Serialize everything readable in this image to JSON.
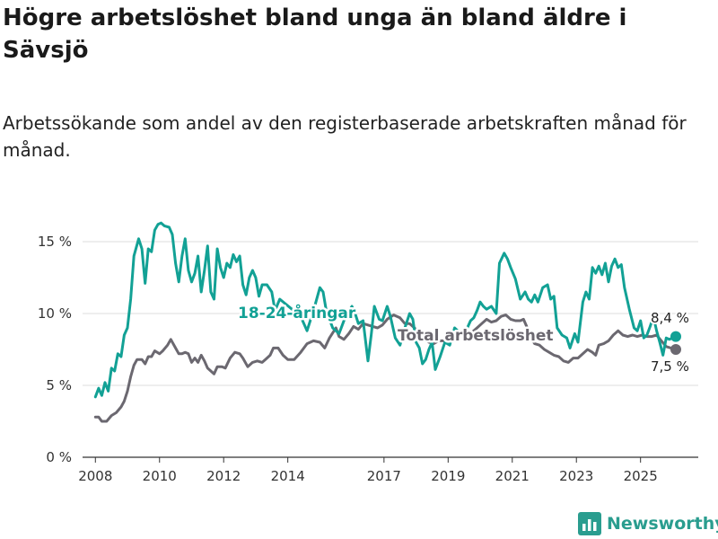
{
  "title": "Högre arbetslöshet bland unga än bland äldre i Sävsjö",
  "subtitle": "Arbetssökande som andel av den registerbaserade arbetskraften månad för månad.",
  "brand": {
    "name": "Newsworthy",
    "icon": "bar-chart-logo-icon",
    "color": "#2a9d8f"
  },
  "chart_data": {
    "type": "line",
    "title": "Högre arbetslöshet bland unga än bland äldre i Sävsjö",
    "xlabel": "",
    "ylabel": "",
    "xlim": [
      2007.6,
      2026.8
    ],
    "ylim": [
      0,
      16.5
    ],
    "y_ticks": [
      0,
      5,
      10,
      15
    ],
    "y_tick_labels": [
      "0 %",
      "5 %",
      "10 %",
      "15 %"
    ],
    "x_ticks": [
      2008,
      2010,
      2012,
      2014,
      2017,
      2019,
      2021,
      2023,
      2025
    ],
    "x_tick_labels": [
      "2008",
      "2010",
      "2012",
      "2014",
      "2017",
      "2019",
      "2021",
      "2023",
      "2025"
    ],
    "grid": true,
    "series": [
      {
        "name": "18-24-åringar",
        "label": "18-24-åringar",
        "color": "#12a195",
        "end_label": "8,4 %",
        "points": [
          [
            2008.0,
            4.2
          ],
          [
            2008.1,
            4.8
          ],
          [
            2008.2,
            4.3
          ],
          [
            2008.3,
            5.2
          ],
          [
            2008.4,
            4.6
          ],
          [
            2008.5,
            6.2
          ],
          [
            2008.6,
            6.0
          ],
          [
            2008.7,
            7.2
          ],
          [
            2008.8,
            7.0
          ],
          [
            2008.9,
            8.5
          ],
          [
            2009.0,
            9.0
          ],
          [
            2009.1,
            11.0
          ],
          [
            2009.2,
            14.0
          ],
          [
            2009.35,
            15.2
          ],
          [
            2009.45,
            14.5
          ],
          [
            2009.55,
            12.1
          ],
          [
            2009.65,
            14.5
          ],
          [
            2009.75,
            14.3
          ],
          [
            2009.85,
            15.8
          ],
          [
            2009.95,
            16.2
          ],
          [
            2010.05,
            16.3
          ],
          [
            2010.15,
            16.1
          ],
          [
            2010.3,
            16.0
          ],
          [
            2010.4,
            15.5
          ],
          [
            2010.5,
            13.5
          ],
          [
            2010.6,
            12.2
          ],
          [
            2010.7,
            14.0
          ],
          [
            2010.8,
            15.2
          ],
          [
            2010.9,
            13.0
          ],
          [
            2011.0,
            12.2
          ],
          [
            2011.1,
            12.8
          ],
          [
            2011.2,
            14.0
          ],
          [
            2011.3,
            11.5
          ],
          [
            2011.4,
            13.0
          ],
          [
            2011.5,
            14.7
          ],
          [
            2011.6,
            11.5
          ],
          [
            2011.7,
            11.0
          ],
          [
            2011.8,
            14.5
          ],
          [
            2011.9,
            13.2
          ],
          [
            2012.0,
            12.5
          ],
          [
            2012.1,
            13.5
          ],
          [
            2012.2,
            13.2
          ],
          [
            2012.3,
            14.1
          ],
          [
            2012.4,
            13.6
          ],
          [
            2012.5,
            14.0
          ],
          [
            2012.6,
            12.0
          ],
          [
            2012.7,
            11.3
          ],
          [
            2012.8,
            12.5
          ],
          [
            2012.9,
            13.0
          ],
          [
            2013.0,
            12.5
          ],
          [
            2013.1,
            11.2
          ],
          [
            2013.2,
            12.0
          ],
          [
            2013.35,
            12.0
          ],
          [
            2013.5,
            11.5
          ],
          [
            2013.6,
            10.2
          ],
          [
            2013.75,
            11.0
          ],
          [
            2014.4,
            9.8
          ],
          [
            2014.6,
            8.8
          ],
          [
            2014.8,
            10.2
          ],
          [
            2015.0,
            11.8
          ],
          [
            2015.1,
            11.5
          ],
          [
            2015.2,
            10.2
          ],
          [
            2015.4,
            9.0
          ],
          [
            2015.6,
            8.6
          ],
          [
            2015.8,
            9.8
          ],
          [
            2016.0,
            10.5
          ],
          [
            2016.1,
            10.0
          ],
          [
            2016.2,
            9.3
          ],
          [
            2016.35,
            9.5
          ],
          [
            2016.5,
            6.7
          ],
          [
            2016.6,
            8.5
          ],
          [
            2016.7,
            10.5
          ],
          [
            2016.85,
            9.6
          ],
          [
            2016.95,
            9.5
          ],
          [
            2017.1,
            10.5
          ],
          [
            2017.2,
            9.8
          ],
          [
            2017.35,
            8.3
          ],
          [
            2017.5,
            7.8
          ],
          [
            2017.65,
            9.0
          ],
          [
            2017.8,
            10.0
          ],
          [
            2017.9,
            9.6
          ],
          [
            2018.0,
            8.0
          ],
          [
            2018.1,
            7.6
          ],
          [
            2018.2,
            6.5
          ],
          [
            2018.3,
            6.8
          ],
          [
            2018.4,
            7.5
          ],
          [
            2018.5,
            8.0
          ],
          [
            2018.6,
            6.1
          ],
          [
            2018.75,
            7.0
          ],
          [
            2018.9,
            8.0
          ],
          [
            2019.05,
            7.8
          ],
          [
            2019.2,
            9.0
          ],
          [
            2019.35,
            8.7
          ],
          [
            2019.5,
            8.5
          ],
          [
            2019.6,
            9.0
          ],
          [
            2019.7,
            9.5
          ],
          [
            2019.8,
            9.7
          ],
          [
            2019.9,
            10.2
          ],
          [
            2020.0,
            10.8
          ],
          [
            2020.1,
            10.5
          ],
          [
            2020.2,
            10.3
          ],
          [
            2020.35,
            10.5
          ],
          [
            2020.5,
            10.0
          ],
          [
            2020.6,
            13.5
          ],
          [
            2020.75,
            14.2
          ],
          [
            2020.85,
            13.8
          ],
          [
            2020.95,
            13.2
          ],
          [
            2021.1,
            12.4
          ],
          [
            2021.25,
            11.0
          ],
          [
            2021.4,
            11.5
          ],
          [
            2021.5,
            11.0
          ],
          [
            2021.6,
            10.8
          ],
          [
            2021.7,
            11.3
          ],
          [
            2021.8,
            10.8
          ],
          [
            2021.95,
            11.8
          ],
          [
            2022.1,
            12.0
          ],
          [
            2022.2,
            11.0
          ],
          [
            2022.3,
            11.2
          ],
          [
            2022.4,
            9.0
          ],
          [
            2022.55,
            8.5
          ],
          [
            2022.7,
            8.3
          ],
          [
            2022.8,
            7.6
          ],
          [
            2022.95,
            8.6
          ],
          [
            2023.05,
            8.0
          ],
          [
            2023.2,
            10.8
          ],
          [
            2023.3,
            11.5
          ],
          [
            2023.4,
            11.0
          ],
          [
            2023.5,
            13.2
          ],
          [
            2023.6,
            12.8
          ],
          [
            2023.7,
            13.3
          ],
          [
            2023.8,
            12.7
          ],
          [
            2023.9,
            13.5
          ],
          [
            2024.0,
            12.2
          ],
          [
            2024.1,
            13.3
          ],
          [
            2024.2,
            13.8
          ],
          [
            2024.3,
            13.2
          ],
          [
            2024.4,
            13.4
          ],
          [
            2024.5,
            11.8
          ],
          [
            2024.65,
            10.3
          ],
          [
            2024.8,
            9.0
          ],
          [
            2024.9,
            8.8
          ],
          [
            2025.0,
            9.5
          ],
          [
            2025.1,
            8.3
          ],
          [
            2025.2,
            8.5
          ],
          [
            2025.3,
            9.1
          ],
          [
            2025.4,
            9.8
          ],
          [
            2025.5,
            8.8
          ],
          [
            2025.6,
            8.0
          ],
          [
            2025.7,
            7.1
          ],
          [
            2025.8,
            8.3
          ],
          [
            2025.9,
            8.2
          ],
          [
            2026.0,
            8.3
          ],
          [
            2026.1,
            8.4
          ]
        ]
      },
      {
        "name": "Total arbetslöshet",
        "label": "Total arbetslöshet",
        "color": "#6b6870",
        "end_label": "7,5 %",
        "points": [
          [
            2008.0,
            2.8
          ],
          [
            2008.1,
            2.8
          ],
          [
            2008.2,
            2.5
          ],
          [
            2008.35,
            2.5
          ],
          [
            2008.5,
            2.9
          ],
          [
            2008.65,
            3.1
          ],
          [
            2008.8,
            3.5
          ],
          [
            2008.9,
            3.9
          ],
          [
            2009.0,
            4.6
          ],
          [
            2009.1,
            5.6
          ],
          [
            2009.2,
            6.4
          ],
          [
            2009.3,
            6.8
          ],
          [
            2009.45,
            6.8
          ],
          [
            2009.55,
            6.5
          ],
          [
            2009.65,
            7.0
          ],
          [
            2009.75,
            7.0
          ],
          [
            2009.85,
            7.4
          ],
          [
            2010.0,
            7.2
          ],
          [
            2010.1,
            7.4
          ],
          [
            2010.25,
            7.8
          ],
          [
            2010.35,
            8.2
          ],
          [
            2010.5,
            7.6
          ],
          [
            2010.6,
            7.2
          ],
          [
            2010.7,
            7.2
          ],
          [
            2010.8,
            7.3
          ],
          [
            2010.9,
            7.2
          ],
          [
            2011.0,
            6.6
          ],
          [
            2011.1,
            6.9
          ],
          [
            2011.2,
            6.6
          ],
          [
            2011.3,
            7.1
          ],
          [
            2011.4,
            6.7
          ],
          [
            2011.5,
            6.2
          ],
          [
            2011.6,
            6.0
          ],
          [
            2011.7,
            5.8
          ],
          [
            2011.8,
            6.3
          ],
          [
            2011.95,
            6.3
          ],
          [
            2012.05,
            6.2
          ],
          [
            2012.2,
            6.9
          ],
          [
            2012.35,
            7.3
          ],
          [
            2012.5,
            7.2
          ],
          [
            2012.6,
            6.9
          ],
          [
            2012.75,
            6.3
          ],
          [
            2012.9,
            6.6
          ],
          [
            2013.05,
            6.7
          ],
          [
            2013.2,
            6.6
          ],
          [
            2013.3,
            6.8
          ],
          [
            2013.45,
            7.1
          ],
          [
            2013.55,
            7.6
          ],
          [
            2013.7,
            7.6
          ],
          [
            2013.85,
            7.1
          ],
          [
            2014.0,
            6.8
          ],
          [
            2014.2,
            6.8
          ],
          [
            2014.4,
            7.3
          ],
          [
            2014.6,
            7.9
          ],
          [
            2014.8,
            8.1
          ],
          [
            2015.0,
            8.0
          ],
          [
            2015.15,
            7.6
          ],
          [
            2015.3,
            8.3
          ],
          [
            2015.5,
            9.0
          ],
          [
            2015.6,
            8.4
          ],
          [
            2015.75,
            8.2
          ],
          [
            2015.9,
            8.6
          ],
          [
            2016.05,
            9.1
          ],
          [
            2016.2,
            8.9
          ],
          [
            2016.35,
            9.3
          ],
          [
            2016.5,
            9.2
          ],
          [
            2016.65,
            9.1
          ],
          [
            2016.8,
            9.0
          ],
          [
            2016.95,
            9.2
          ],
          [
            2017.1,
            9.6
          ],
          [
            2017.3,
            9.9
          ],
          [
            2017.5,
            9.7
          ],
          [
            2017.65,
            9.3
          ],
          [
            2017.8,
            9.3
          ],
          [
            2017.95,
            9.0
          ],
          [
            2018.1,
            8.6
          ],
          [
            2018.25,
            8.2
          ],
          [
            2018.4,
            8.0
          ],
          [
            2018.55,
            7.9
          ],
          [
            2018.7,
            8.1
          ],
          [
            2018.85,
            8.1
          ],
          [
            2019.0,
            8.2
          ],
          [
            2019.15,
            8.4
          ],
          [
            2019.3,
            8.6
          ],
          [
            2019.45,
            8.8
          ],
          [
            2019.6,
            8.6
          ],
          [
            2019.75,
            8.7
          ],
          [
            2019.9,
            9.0
          ],
          [
            2020.05,
            9.3
          ],
          [
            2020.2,
            9.6
          ],
          [
            2020.35,
            9.4
          ],
          [
            2020.5,
            9.5
          ],
          [
            2020.65,
            9.8
          ],
          [
            2020.8,
            9.9
          ],
          [
            2020.95,
            9.6
          ],
          [
            2021.1,
            9.5
          ],
          [
            2021.25,
            9.5
          ],
          [
            2021.35,
            9.6
          ],
          [
            2021.45,
            9.1
          ],
          [
            2021.55,
            8.4
          ],
          [
            2021.7,
            7.9
          ],
          [
            2021.85,
            7.8
          ],
          [
            2022.0,
            7.5
          ],
          [
            2022.15,
            7.3
          ],
          [
            2022.3,
            7.1
          ],
          [
            2022.45,
            7.0
          ],
          [
            2022.6,
            6.7
          ],
          [
            2022.75,
            6.6
          ],
          [
            2022.9,
            6.9
          ],
          [
            2023.05,
            6.9
          ],
          [
            2023.2,
            7.2
          ],
          [
            2023.35,
            7.5
          ],
          [
            2023.5,
            7.3
          ],
          [
            2023.6,
            7.1
          ],
          [
            2023.7,
            7.8
          ],
          [
            2023.85,
            7.9
          ],
          [
            2024.0,
            8.1
          ],
          [
            2024.15,
            8.5
          ],
          [
            2024.3,
            8.8
          ],
          [
            2024.45,
            8.5
          ],
          [
            2024.6,
            8.4
          ],
          [
            2024.75,
            8.5
          ],
          [
            2024.9,
            8.4
          ],
          [
            2025.05,
            8.5
          ],
          [
            2025.2,
            8.4
          ],
          [
            2025.35,
            8.4
          ],
          [
            2025.5,
            8.5
          ],
          [
            2025.65,
            8.1
          ],
          [
            2025.8,
            7.7
          ],
          [
            2025.95,
            7.6
          ],
          [
            2026.1,
            7.5
          ]
        ]
      }
    ]
  }
}
